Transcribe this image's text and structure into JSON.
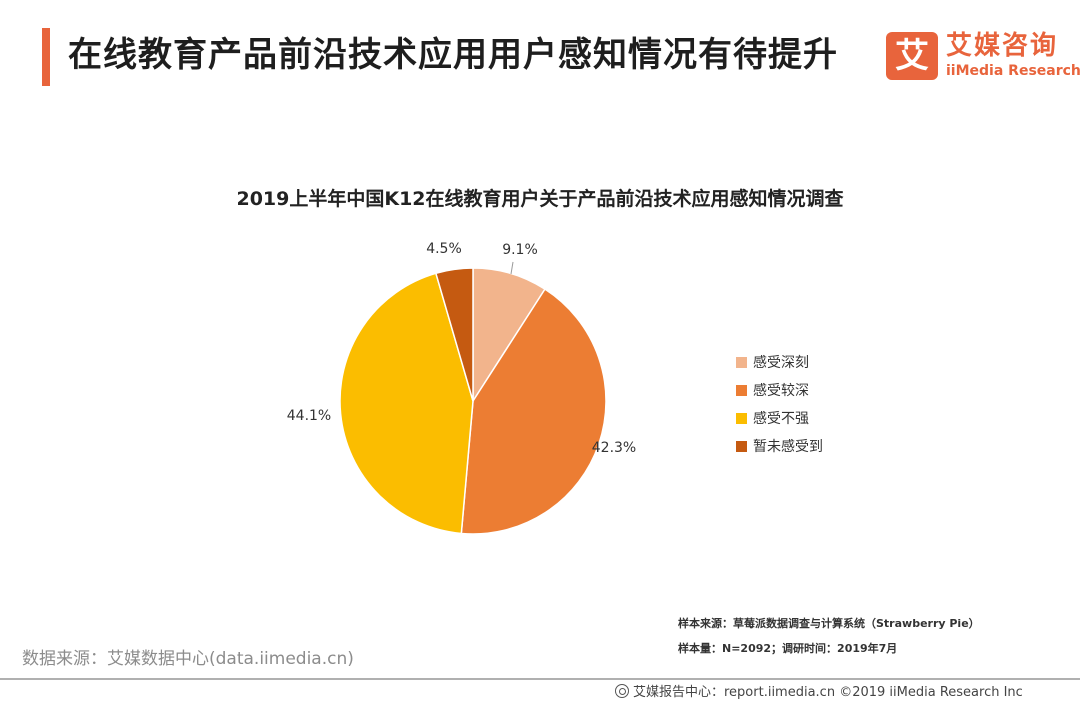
{
  "header": {
    "title": "在线教育产品前沿技术应用用户感知情况有待提升",
    "logo_mark": "艾",
    "logo_cn": "艾媒咨询",
    "logo_en": "iiMedia Research"
  },
  "colors": {
    "accent": "#e8643c"
  },
  "chart_data": {
    "type": "pie",
    "title": "2019上半年中国K12在线教育用户关于产品前沿技术应用感知情况调查",
    "categories": [
      "感受深刻",
      "感受较深",
      "感受不强",
      "暂未感受到"
    ],
    "values": [
      9.1,
      42.3,
      44.1,
      4.5
    ],
    "labels": [
      "9.1%",
      "42.3%",
      "44.1%",
      "4.5%"
    ],
    "colors": [
      "#f2b48c",
      "#ec7d33",
      "#fbbd00",
      "#c55a11"
    ],
    "legend_position": "right"
  },
  "notes": {
    "sample_source": "样本来源：草莓派数据调查与计算系统（Strawberry  Pie）",
    "sample_size": "样本量：N=2092；调研时间：2019年7月"
  },
  "source": "数据来源：艾媒数据中心(data.iimedia.cn)",
  "footer": {
    "text": "艾媒报告中心：report.iimedia.cn  ©2019  iiMedia Research  Inc"
  }
}
